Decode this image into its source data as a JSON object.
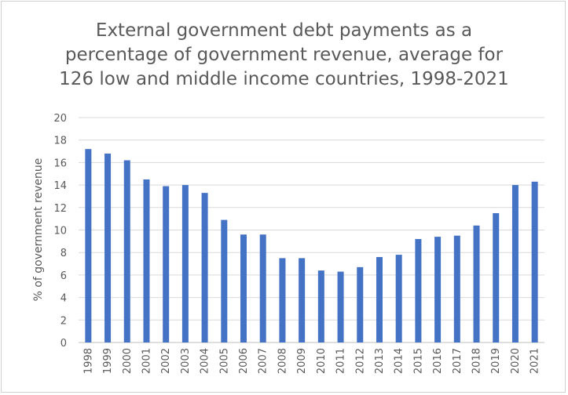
{
  "chart_data": {
    "type": "bar",
    "title_lines": [
      "External government debt payments as a",
      "percentage of government revenue, average for",
      "126 low and middle income countries, 1998-2021"
    ],
    "xlabel": "",
    "ylabel": "% of government revenue",
    "ylim": [
      0,
      20
    ],
    "yticks": [
      "0",
      "2",
      "4",
      "6",
      "8",
      "10",
      "12",
      "14",
      "16",
      "18",
      "20"
    ],
    "grid": true,
    "bar_color": "#4472C4",
    "categories": [
      "1998",
      "1999",
      "2000",
      "2001",
      "2002",
      "2003",
      "2004",
      "2005",
      "2006",
      "2007",
      "2008",
      "2009",
      "2010",
      "2011",
      "2012",
      "2013",
      "2014",
      "2015",
      "2016",
      "2017",
      "2018",
      "2019",
      "2020",
      "2021"
    ],
    "values": [
      17.2,
      16.8,
      16.2,
      14.5,
      13.9,
      14.0,
      13.3,
      10.9,
      9.6,
      9.6,
      7.5,
      7.5,
      6.4,
      6.3,
      6.7,
      7.6,
      7.8,
      9.2,
      9.4,
      9.5,
      10.4,
      11.5,
      14.0,
      14.3
    ]
  }
}
